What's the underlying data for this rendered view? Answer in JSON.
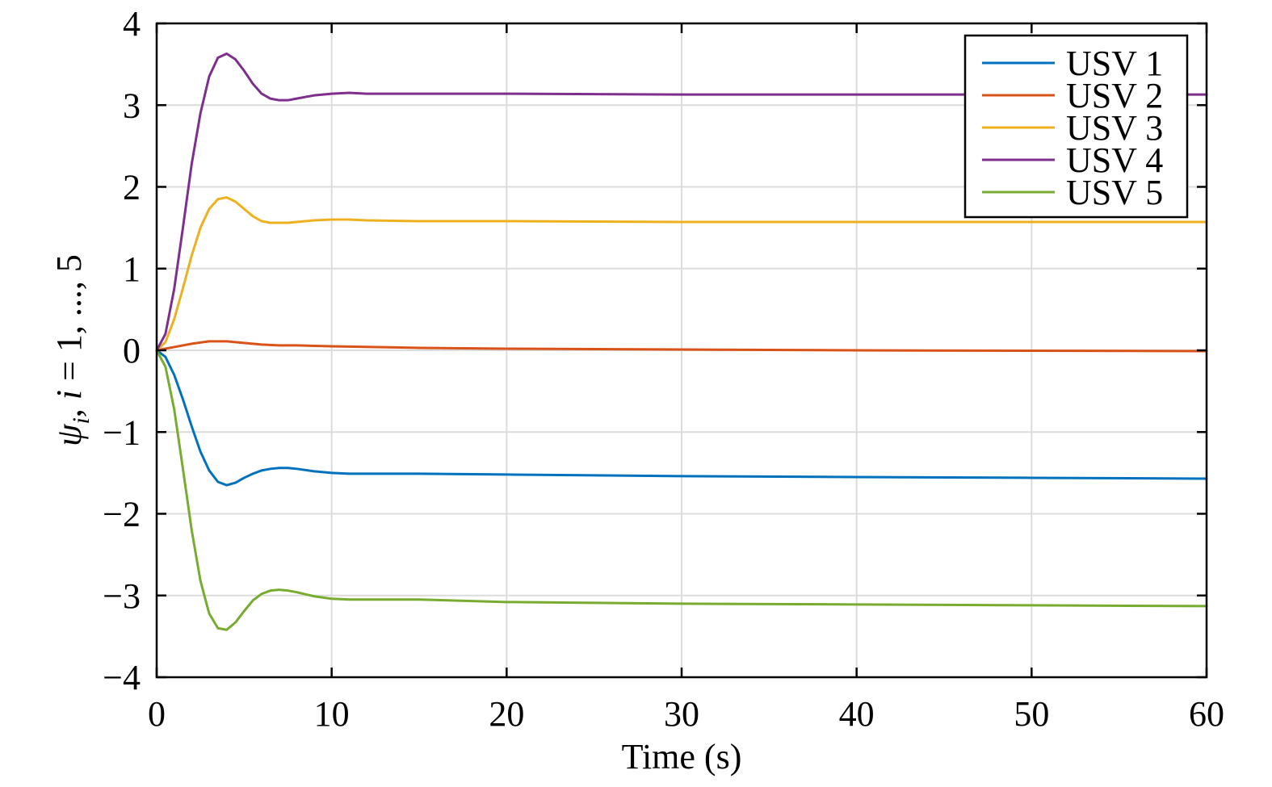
{
  "chart_data": {
    "type": "line",
    "xlabel": "Time (s)",
    "ylabel": "ψ_i, i = 1, ..., 5",
    "ylabel_parts": {
      "psi": "ψ",
      "sub": "i",
      "sep": ", ",
      "ivar": "i",
      "rest": " = 1, ..., 5"
    },
    "xlim": [
      0,
      60
    ],
    "ylim": [
      -4,
      4
    ],
    "xticks": [
      0,
      10,
      20,
      30,
      40,
      50,
      60
    ],
    "xtick_labels": [
      "0",
      "10",
      "20",
      "30",
      "40",
      "50",
      "60"
    ],
    "yticks": [
      -4,
      -3,
      -2,
      -1,
      0,
      1,
      2,
      3,
      4
    ],
    "ytick_labels": [
      "−4",
      "−3",
      "−2",
      "−1",
      "0",
      "1",
      "2",
      "3",
      "4"
    ],
    "grid": true,
    "legend_position": "top-right",
    "series": [
      {
        "name": "USV 1",
        "color": "#0072BD",
        "points": [
          [
            0,
            0
          ],
          [
            0.5,
            -0.08
          ],
          [
            1,
            -0.3
          ],
          [
            1.5,
            -0.6
          ],
          [
            2,
            -0.93
          ],
          [
            2.5,
            -1.24
          ],
          [
            3,
            -1.47
          ],
          [
            3.5,
            -1.61
          ],
          [
            4,
            -1.65
          ],
          [
            4.5,
            -1.62
          ],
          [
            5,
            -1.56
          ],
          [
            5.5,
            -1.51
          ],
          [
            6,
            -1.47
          ],
          [
            6.5,
            -1.45
          ],
          [
            7,
            -1.44
          ],
          [
            7.5,
            -1.44
          ],
          [
            8,
            -1.45
          ],
          [
            9,
            -1.48
          ],
          [
            10,
            -1.5
          ],
          [
            11,
            -1.51
          ],
          [
            12,
            -1.51
          ],
          [
            15,
            -1.51
          ],
          [
            20,
            -1.52
          ],
          [
            25,
            -1.53
          ],
          [
            30,
            -1.54
          ],
          [
            40,
            -1.55
          ],
          [
            50,
            -1.56
          ],
          [
            60,
            -1.57
          ]
        ]
      },
      {
        "name": "USV 2",
        "color": "#D95319",
        "points": [
          [
            0,
            0
          ],
          [
            1,
            0.04
          ],
          [
            2,
            0.08
          ],
          [
            3,
            0.11
          ],
          [
            3.5,
            0.11
          ],
          [
            4,
            0.11
          ],
          [
            5,
            0.09
          ],
          [
            6,
            0.07
          ],
          [
            7,
            0.06
          ],
          [
            8,
            0.06
          ],
          [
            10,
            0.05
          ],
          [
            15,
            0.03
          ],
          [
            20,
            0.02
          ],
          [
            30,
            0.01
          ],
          [
            40,
            0.0
          ],
          [
            50,
            -0.005
          ],
          [
            60,
            -0.01
          ]
        ]
      },
      {
        "name": "USV 3",
        "color": "#EDB120",
        "points": [
          [
            0,
            0
          ],
          [
            0.5,
            0.1
          ],
          [
            1,
            0.38
          ],
          [
            1.5,
            0.76
          ],
          [
            2,
            1.16
          ],
          [
            2.5,
            1.5
          ],
          [
            3,
            1.73
          ],
          [
            3.5,
            1.85
          ],
          [
            4,
            1.87
          ],
          [
            4.5,
            1.82
          ],
          [
            5,
            1.73
          ],
          [
            5.5,
            1.64
          ],
          [
            6,
            1.58
          ],
          [
            6.5,
            1.56
          ],
          [
            7,
            1.56
          ],
          [
            7.5,
            1.56
          ],
          [
            8,
            1.57
          ],
          [
            9,
            1.59
          ],
          [
            10,
            1.6
          ],
          [
            11,
            1.6
          ],
          [
            12,
            1.59
          ],
          [
            15,
            1.58
          ],
          [
            20,
            1.58
          ],
          [
            30,
            1.57
          ],
          [
            40,
            1.57
          ],
          [
            50,
            1.57
          ],
          [
            60,
            1.57
          ]
        ]
      },
      {
        "name": "USV 4",
        "color": "#7E2F8E",
        "points": [
          [
            0,
            0
          ],
          [
            0.5,
            0.2
          ],
          [
            1,
            0.75
          ],
          [
            1.5,
            1.5
          ],
          [
            2,
            2.28
          ],
          [
            2.5,
            2.9
          ],
          [
            3,
            3.35
          ],
          [
            3.5,
            3.58
          ],
          [
            4,
            3.63
          ],
          [
            4.5,
            3.56
          ],
          [
            5,
            3.42
          ],
          [
            5.5,
            3.26
          ],
          [
            6,
            3.14
          ],
          [
            6.5,
            3.08
          ],
          [
            7,
            3.06
          ],
          [
            7.5,
            3.06
          ],
          [
            8,
            3.08
          ],
          [
            9,
            3.12
          ],
          [
            10,
            3.14
          ],
          [
            11,
            3.15
          ],
          [
            12,
            3.14
          ],
          [
            15,
            3.14
          ],
          [
            20,
            3.14
          ],
          [
            30,
            3.13
          ],
          [
            40,
            3.13
          ],
          [
            50,
            3.13
          ],
          [
            60,
            3.13
          ]
        ]
      },
      {
        "name": "USV 5",
        "color": "#77AC30",
        "points": [
          [
            0,
            0
          ],
          [
            0.5,
            -0.2
          ],
          [
            1,
            -0.72
          ],
          [
            1.5,
            -1.45
          ],
          [
            2,
            -2.2
          ],
          [
            2.5,
            -2.82
          ],
          [
            3,
            -3.22
          ],
          [
            3.5,
            -3.4
          ],
          [
            4,
            -3.42
          ],
          [
            4.5,
            -3.33
          ],
          [
            5,
            -3.19
          ],
          [
            5.5,
            -3.06
          ],
          [
            6,
            -2.98
          ],
          [
            6.5,
            -2.94
          ],
          [
            7,
            -2.93
          ],
          [
            7.5,
            -2.94
          ],
          [
            8,
            -2.96
          ],
          [
            9,
            -3.01
          ],
          [
            10,
            -3.04
          ],
          [
            11,
            -3.05
          ],
          [
            12,
            -3.05
          ],
          [
            15,
            -3.05
          ],
          [
            20,
            -3.08
          ],
          [
            30,
            -3.1
          ],
          [
            40,
            -3.11
          ],
          [
            50,
            -3.12
          ],
          [
            60,
            -3.13
          ]
        ]
      }
    ]
  }
}
